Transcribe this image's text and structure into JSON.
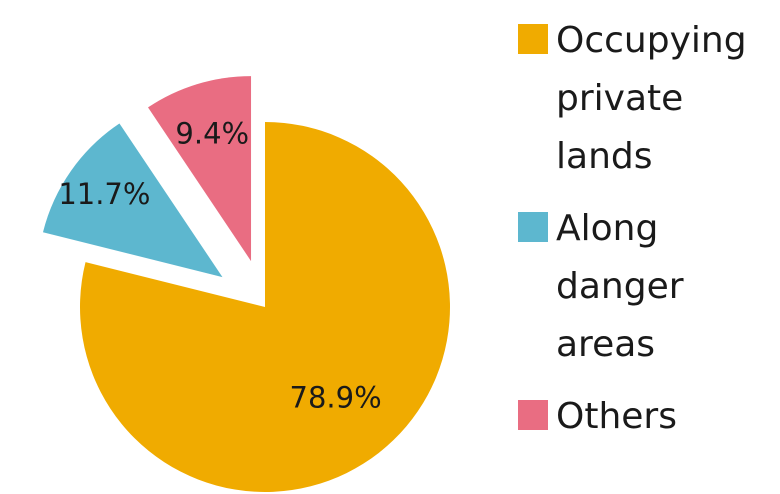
{
  "chart_data": {
    "type": "pie",
    "series": [
      {
        "name": "Occupying private lands",
        "value": 78.9,
        "label": "78.9%",
        "color": "#f0ab00",
        "legend_lines": [
          "Occupying",
          "private",
          "lands"
        ]
      },
      {
        "name": "Along danger areas",
        "value": 11.7,
        "label": "11.7%",
        "color": "#5db7cf",
        "legend_lines": [
          "Along",
          "danger",
          "areas"
        ]
      },
      {
        "name": "Others",
        "value": 9.4,
        "label": "9.4%",
        "color": "#e96d82",
        "legend_lines": [
          "Others"
        ]
      }
    ],
    "exploded": true,
    "legend_position": "right"
  }
}
